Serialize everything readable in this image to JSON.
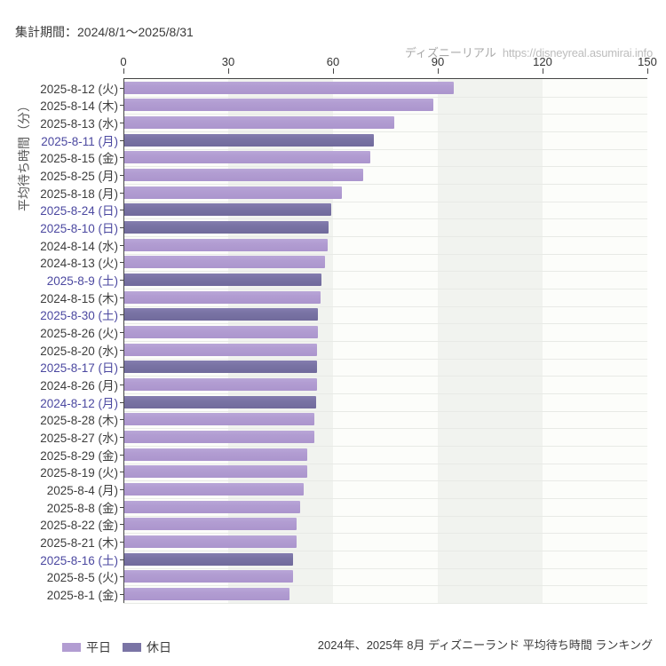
{
  "meta": {
    "period_label": "集計期間：2024/8/1～2025/8/31",
    "watermark_site": "ディズニーリアル",
    "watermark_url": "https://disneyreal.asumirai.info",
    "caption": "2024年、2025年 8月 ディズニーランド 平均待ち時間 ランキング"
  },
  "colors": {
    "weekday_bar": "#b29dd2",
    "holiday_bar": "#7a74a5",
    "holiday_label_text": "#4b48a0",
    "weekday_label_text": "#3d3d3d",
    "axis_line": "#454545",
    "gridline": "#e8eae6",
    "band_gray": "#f1f3ef",
    "band_white": "#fcfdfa",
    "watermark_text": "#b2b2b2"
  },
  "chart_data": {
    "type": "bar",
    "orientation": "horizontal",
    "title": "2024年、2025年 8月 ディズニーランド 平均待ち時間 ランキング",
    "xlabel": "",
    "ylabel": "平均待ち時間（分）",
    "xlim": [
      0,
      150
    ],
    "xticks": [
      0,
      30,
      60,
      90,
      120,
      150
    ],
    "grid": true,
    "legend_position": "bottom-left",
    "legend": [
      {
        "label": "平日",
        "type": "weekday"
      },
      {
        "label": "休日",
        "type": "holiday"
      }
    ],
    "categories": [
      "2025-8-12 (火)",
      "2025-8-14 (木)",
      "2025-8-13 (水)",
      "2025-8-11 (月)",
      "2025-8-15 (金)",
      "2025-8-25 (月)",
      "2025-8-18 (月)",
      "2025-8-24 (日)",
      "2025-8-10 (日)",
      "2024-8-14 (水)",
      "2024-8-13 (火)",
      "2025-8-9 (土)",
      "2024-8-15 (木)",
      "2025-8-30 (土)",
      "2025-8-26 (火)",
      "2025-8-20 (水)",
      "2025-8-17 (日)",
      "2024-8-26 (月)",
      "2024-8-12 (月)",
      "2025-8-28 (木)",
      "2025-8-27 (水)",
      "2025-8-29 (金)",
      "2025-8-19 (火)",
      "2025-8-4 (月)",
      "2025-8-8 (金)",
      "2025-8-22 (金)",
      "2025-8-21 (木)",
      "2025-8-16 (土)",
      "2025-8-5 (火)",
      "2025-8-1 (金)"
    ],
    "day_types": [
      "weekday",
      "weekday",
      "weekday",
      "holiday",
      "weekday",
      "weekday",
      "weekday",
      "holiday",
      "holiday",
      "weekday",
      "weekday",
      "holiday",
      "weekday",
      "holiday",
      "weekday",
      "weekday",
      "holiday",
      "weekday",
      "holiday",
      "weekday",
      "weekday",
      "weekday",
      "weekday",
      "weekday",
      "weekday",
      "weekday",
      "weekday",
      "holiday",
      "weekday",
      "weekday"
    ],
    "values": [
      94.4,
      88.5,
      77.3,
      71.4,
      70.3,
      68.3,
      62.2,
      59.3,
      58.4,
      58.2,
      57.4,
      56.4,
      56.2,
      55.4,
      55.3,
      55.2,
      55.2,
      55.1,
      55.0,
      54.4,
      54.3,
      52.4,
      52.3,
      51.4,
      50.3,
      49.3,
      49.2,
      48.3,
      48.2,
      47.2
    ]
  }
}
